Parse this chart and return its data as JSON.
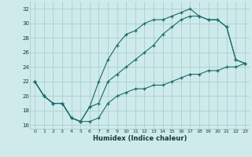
{
  "xlabel": "Humidex (Indice chaleur)",
  "bg_color": "#ceeaea",
  "grid_color": "#aacfcf",
  "line_color": "#1a6b6b",
  "xlim": [
    -0.5,
    23.5
  ],
  "ylim": [
    15.5,
    33.0
  ],
  "xticks": [
    0,
    1,
    2,
    3,
    4,
    5,
    6,
    7,
    8,
    9,
    10,
    11,
    12,
    13,
    14,
    15,
    16,
    17,
    18,
    19,
    20,
    21,
    22,
    23
  ],
  "yticks": [
    16,
    18,
    20,
    22,
    24,
    26,
    28,
    30,
    32
  ],
  "line1_x": [
    0,
    1,
    2,
    3,
    4,
    5,
    6,
    7,
    8,
    9,
    10,
    11,
    12,
    13,
    14,
    15,
    16,
    17,
    18,
    19,
    20,
    21,
    22,
    23
  ],
  "line1_y": [
    22.0,
    20.0,
    19.0,
    19.0,
    17.0,
    16.5,
    18.5,
    22.0,
    25.0,
    27.0,
    28.5,
    29.0,
    30.0,
    30.5,
    30.5,
    31.0,
    31.5,
    32.0,
    31.0,
    30.5,
    30.5,
    29.5,
    25.0,
    24.5
  ],
  "line2_x": [
    0,
    1,
    2,
    3,
    4,
    5,
    6,
    7,
    8,
    9,
    10,
    11,
    12,
    13,
    14,
    15,
    16,
    17,
    18,
    19,
    20,
    21,
    22,
    23
  ],
  "line2_y": [
    22.0,
    20.0,
    19.0,
    19.0,
    17.0,
    16.5,
    18.5,
    19.0,
    22.0,
    23.0,
    24.0,
    25.0,
    26.0,
    27.0,
    28.5,
    29.5,
    30.5,
    31.0,
    31.0,
    30.5,
    30.5,
    29.5,
    25.0,
    24.5
  ],
  "line3_x": [
    0,
    1,
    2,
    3,
    4,
    5,
    6,
    7,
    8,
    9,
    10,
    11,
    12,
    13,
    14,
    15,
    16,
    17,
    18,
    19,
    20,
    21,
    22,
    23
  ],
  "line3_y": [
    22.0,
    20.0,
    19.0,
    19.0,
    17.0,
    16.5,
    16.5,
    17.0,
    19.0,
    20.0,
    20.5,
    21.0,
    21.0,
    21.5,
    21.5,
    22.0,
    22.5,
    23.0,
    23.0,
    23.5,
    23.5,
    24.0,
    24.0,
    24.5
  ]
}
